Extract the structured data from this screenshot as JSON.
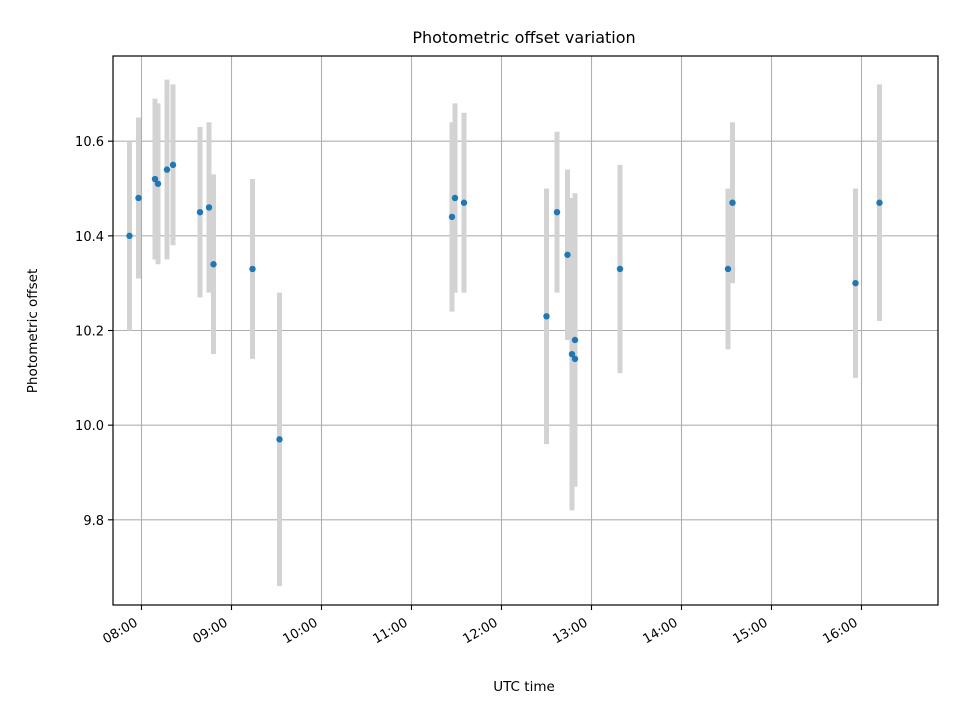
{
  "colors": {
    "point": "#1f77b4",
    "errorbar": "#d3d3d3",
    "grid": "#b0b0b0",
    "axes": "#000000",
    "background": "#ffffff"
  },
  "chart_data": {
    "type": "scatter",
    "title": "Photometric offset variation",
    "xlabel": "UTC time",
    "ylabel": "Photometric offset",
    "x_axis_type": "time",
    "xlim": [
      "07:41",
      "16:51"
    ],
    "ylim": [
      9.62,
      10.78
    ],
    "xticks": [
      "08:00",
      "09:00",
      "10:00",
      "11:00",
      "12:00",
      "13:00",
      "14:00",
      "15:00",
      "16:00"
    ],
    "yticks": [
      9.8,
      10.0,
      10.2,
      10.4,
      10.6
    ],
    "ytick_labels": [
      "9.8",
      "10.0",
      "10.2",
      "10.4",
      "10.6"
    ],
    "grid": true,
    "legend": "none",
    "series": [
      {
        "x": [
          "07:52",
          "07:58",
          "08:09",
          "08:11",
          "08:17",
          "08:21",
          "08:39",
          "08:45",
          "08:48",
          "09:14",
          "09:32",
          "11:27",
          "11:29",
          "11:35",
          "12:30",
          "12:37",
          "12:44",
          "12:47",
          "12:49",
          "12:49",
          "13:19",
          "14:31",
          "14:34",
          "15:56",
          "16:12"
        ],
        "y": [
          10.4,
          10.48,
          10.52,
          10.51,
          10.54,
          10.55,
          10.45,
          10.46,
          10.34,
          10.33,
          9.97,
          10.44,
          10.48,
          10.47,
          10.23,
          10.45,
          10.36,
          10.15,
          10.18,
          10.14,
          10.33,
          10.33,
          10.47,
          10.3,
          10.47
        ],
        "yerr_low": [
          0.2,
          0.17,
          0.17,
          0.17,
          0.19,
          0.17,
          0.18,
          0.18,
          0.19,
          0.19,
          0.31,
          0.2,
          0.2,
          0.19,
          0.27,
          0.17,
          0.18,
          0.33,
          0.31,
          0.27,
          0.22,
          0.17,
          0.17,
          0.2,
          0.25
        ],
        "yerr_high": [
          0.2,
          0.17,
          0.17,
          0.17,
          0.19,
          0.17,
          0.18,
          0.18,
          0.19,
          0.19,
          0.31,
          0.2,
          0.2,
          0.19,
          0.27,
          0.17,
          0.18,
          0.33,
          0.31,
          0.27,
          0.22,
          0.17,
          0.17,
          0.2,
          0.25
        ]
      }
    ]
  }
}
